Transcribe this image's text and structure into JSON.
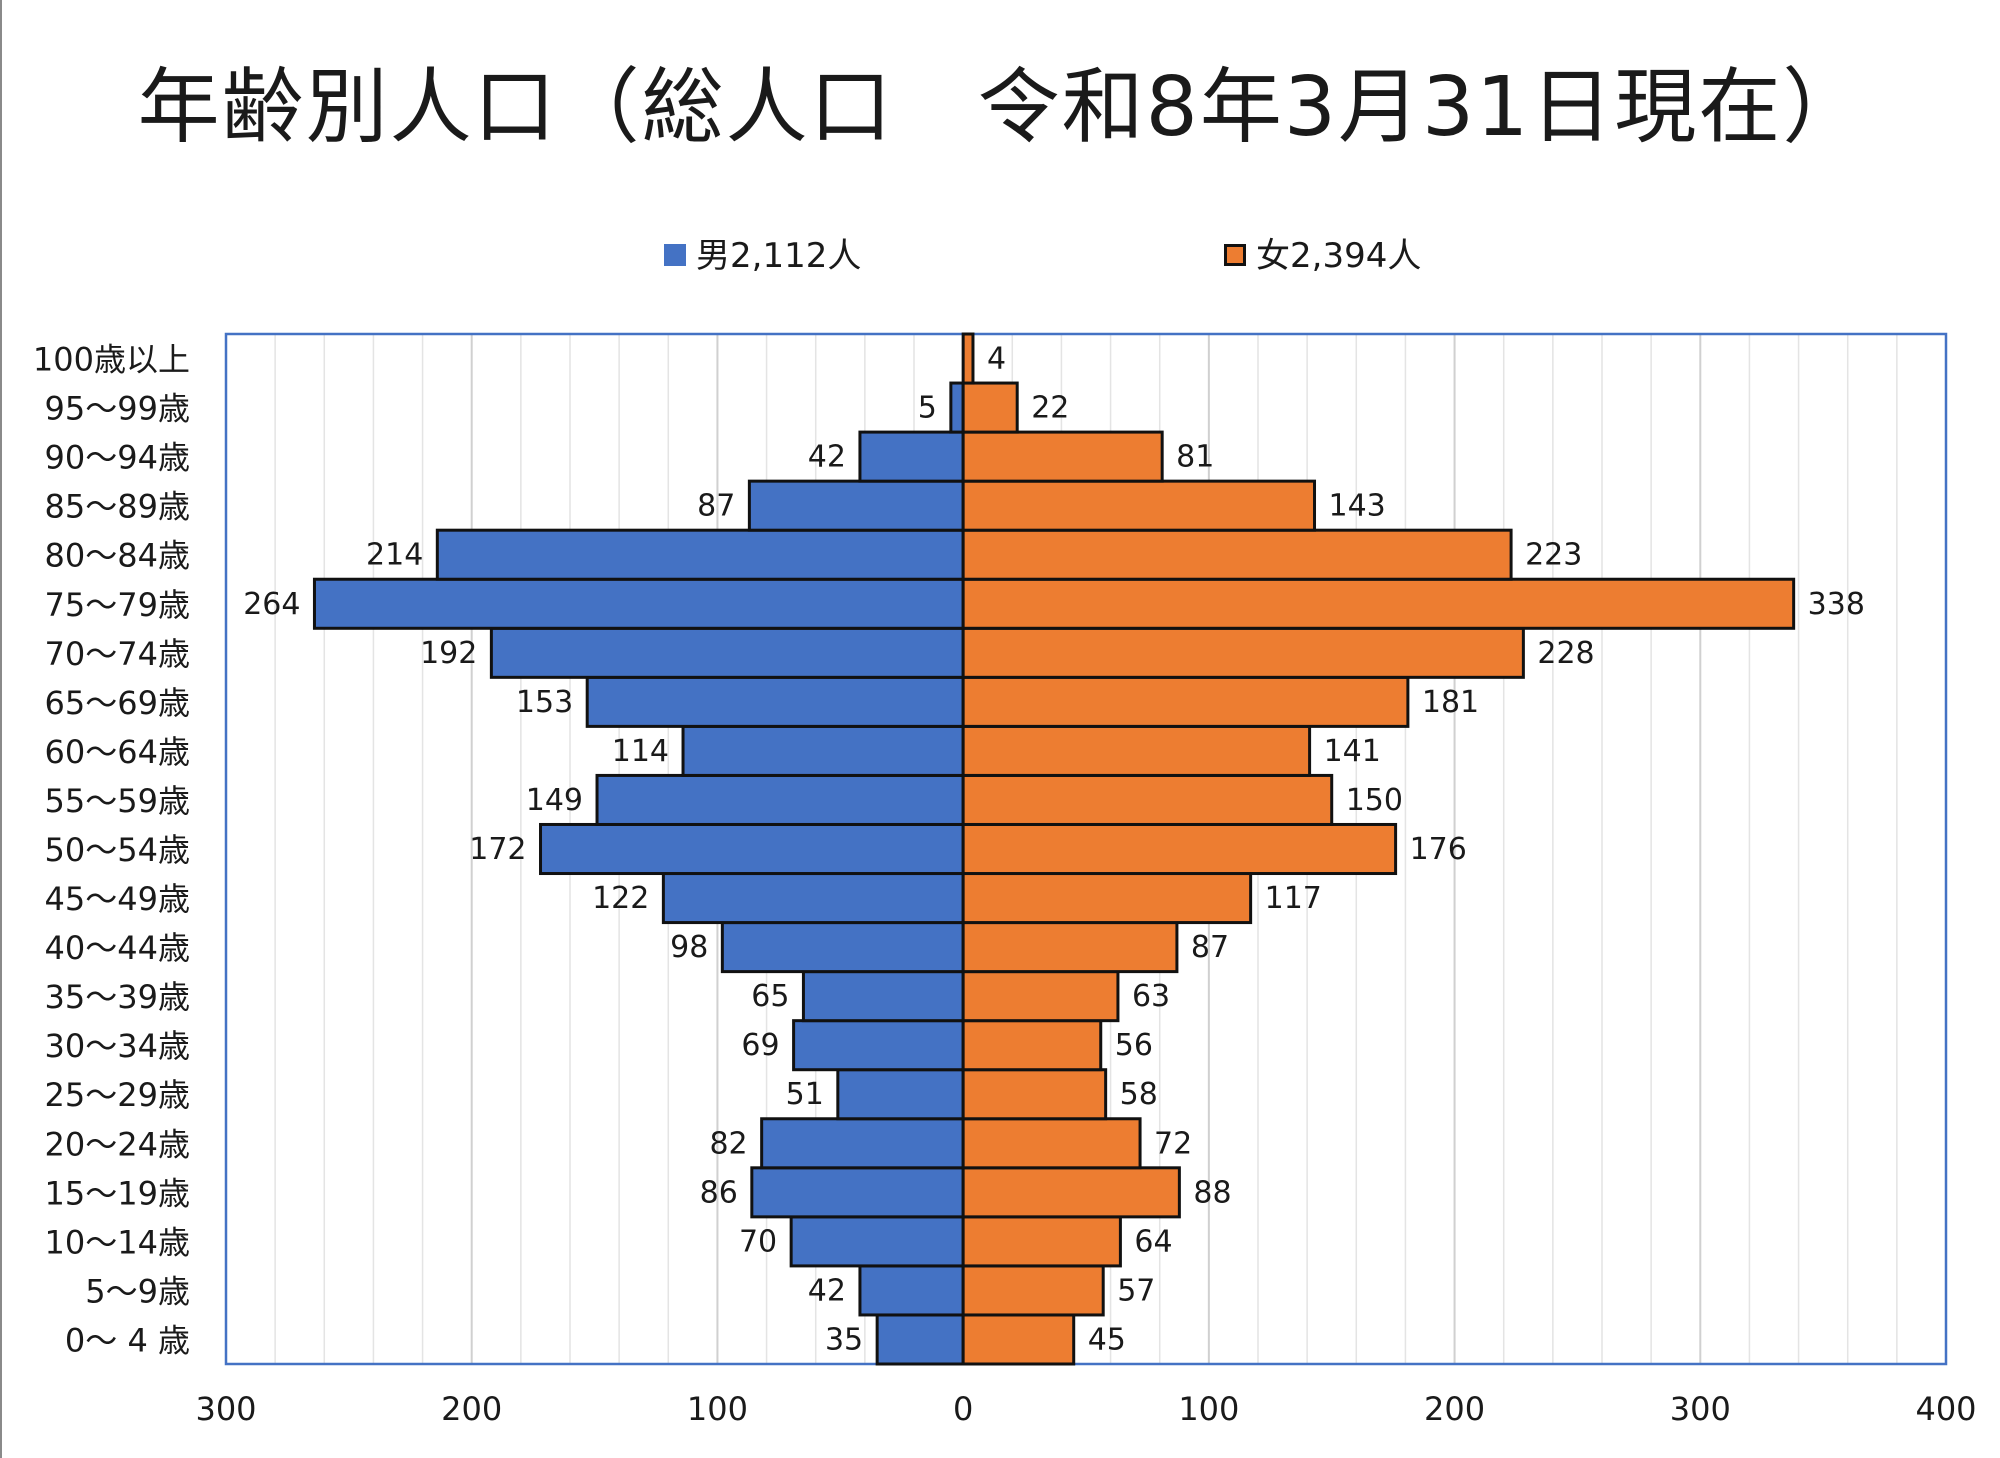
{
  "title": "年齢別人口（総人口　令和8年3月31日現在）",
  "legend": {
    "male": "男2,112人",
    "female": "女2,394人"
  },
  "colors": {
    "male": "#4472c4",
    "female": "#ed7d31",
    "frame": "#4472c4",
    "grid": "#d0d0d0",
    "bar_outline": "#111111"
  },
  "chart_data": {
    "type": "bar",
    "orientation": "horizontal",
    "layout": "population-pyramid",
    "title": "年齢別人口（総人口　令和8年3月31日現在）",
    "categories": [
      "0～ 4 歳",
      "5～9歳",
      "10～14歳",
      "15～19歳",
      "20～24歳",
      "25～29歳",
      "30～34歳",
      "35～39歳",
      "40～44歳",
      "45～49歳",
      "50～54歳",
      "55～59歳",
      "60～64歳",
      "65～69歳",
      "70～74歳",
      "75～79歳",
      "80～84歳",
      "85～89歳",
      "90～94歳",
      "95～99歳",
      "100歳以上"
    ],
    "series": [
      {
        "name": "男2,112人",
        "values": [
          35,
          42,
          70,
          86,
          82,
          51,
          69,
          65,
          98,
          122,
          172,
          149,
          114,
          153,
          192,
          264,
          214,
          87,
          42,
          5,
          0
        ]
      },
      {
        "name": "女2,394人",
        "values": [
          45,
          57,
          64,
          88,
          72,
          58,
          56,
          63,
          87,
          117,
          176,
          150,
          141,
          181,
          228,
          338,
          223,
          143,
          81,
          22,
          4
        ]
      }
    ],
    "data_labels": {
      "male": [
        "35",
        "42",
        "70",
        "86",
        "82",
        "51",
        "69",
        "65",
        "98",
        "122",
        "172",
        "149",
        "114",
        "153",
        "192",
        "264",
        "214",
        "87",
        "42",
        "5",
        ""
      ],
      "female": [
        "45",
        "57",
        "64",
        "88",
        "72",
        "58",
        "56",
        "63",
        "87",
        "117",
        "176",
        "150",
        "141",
        "181",
        "228",
        "338",
        "223",
        "143",
        "81",
        "22",
        "4"
      ]
    },
    "x_ticks": [
      {
        "value": -300,
        "label": "300"
      },
      {
        "value": -200,
        "label": "200"
      },
      {
        "value": -100,
        "label": "100"
      },
      {
        "value": 0,
        "label": "0"
      },
      {
        "value": 100,
        "label": "100"
      },
      {
        "value": 200,
        "label": "200"
      },
      {
        "value": 300,
        "label": "300"
      },
      {
        "value": 400,
        "label": "400"
      }
    ],
    "xlim": [
      -300,
      400
    ],
    "minor_grid_step": 20,
    "grid": true,
    "legend_position": "top"
  }
}
